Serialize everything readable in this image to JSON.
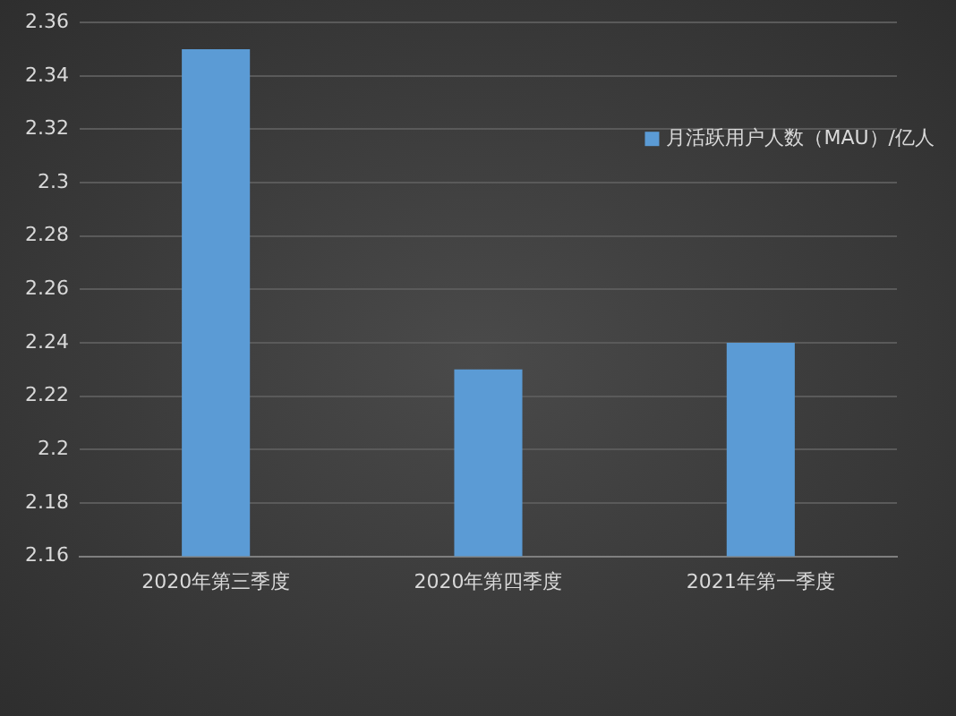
{
  "chart_data": {
    "type": "bar",
    "categories": [
      "2020年第三季度",
      "2020年第四季度",
      "2021年第一季度"
    ],
    "series": [
      {
        "name": "月活跃用户人数（MAU）/亿人",
        "color": "#5b9bd5",
        "values": [
          2.35,
          2.23,
          2.24
        ]
      }
    ],
    "ylim": [
      2.16,
      2.36
    ],
    "yticks": [
      2.16,
      2.18,
      2.2,
      2.22,
      2.24,
      2.26,
      2.28,
      2.3,
      2.32,
      2.34,
      2.36
    ],
    "grid": "y",
    "legend": "top right"
  }
}
